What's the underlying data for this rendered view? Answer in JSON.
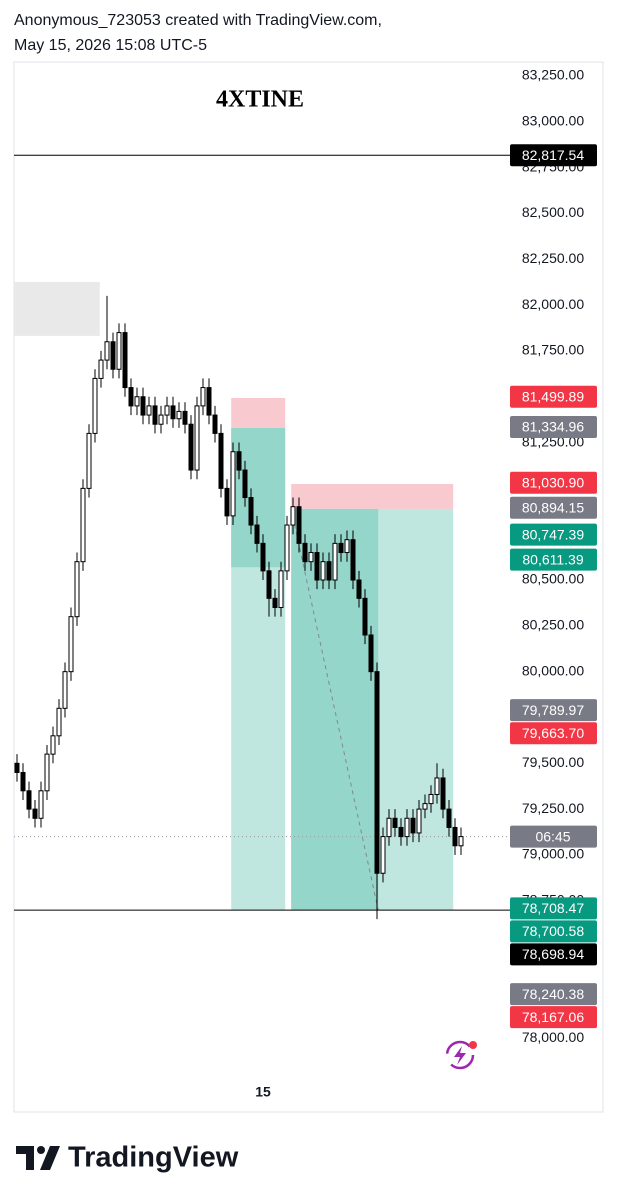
{
  "header": {
    "line1": "Anonymous_723053 created with TradingView.com,",
    "line2": "May 15, 2026 15:08 UTC-5"
  },
  "footer": {
    "brand": "TradingView"
  },
  "chart_data": {
    "type": "candlestick",
    "title": "4XTINE",
    "categories": [
      null,
      null,
      null,
      null,
      null,
      null,
      null,
      null,
      null,
      null,
      null,
      null,
      null,
      null,
      null,
      null,
      null,
      null,
      null,
      null,
      null,
      null,
      null,
      null,
      null,
      null,
      null,
      null,
      null,
      null,
      null,
      null,
      null,
      null,
      null,
      null,
      null,
      null,
      null,
      null,
      null,
      "15",
      null,
      null,
      null,
      null,
      null,
      null,
      null,
      null,
      null,
      null,
      null,
      null,
      null,
      null,
      null,
      null,
      null,
      null,
      null,
      null,
      null,
      null,
      null,
      null,
      null,
      null,
      null,
      null,
      null,
      null,
      null,
      null,
      null
    ],
    "open": [
      79500,
      79450,
      79350,
      79250,
      79200,
      79350,
      79550,
      79650,
      79800,
      80000,
      80300,
      80600,
      81000,
      81300,
      81600,
      81700,
      81800,
      81650,
      81850,
      81550,
      81450,
      81500,
      81400,
      81450,
      81350,
      81400,
      81450,
      81380,
      81420,
      81350,
      81100,
      81450,
      81550,
      81400,
      81300,
      81000,
      80850,
      81200,
      81100,
      80950,
      80800,
      80700,
      80550,
      80400,
      80350,
      80550,
      80800,
      80900,
      80700,
      80600,
      80650,
      80500,
      80600,
      80500,
      80700,
      80650,
      80720,
      80500,
      80400,
      80200,
      80000,
      78900,
      79100,
      79200,
      79150,
      79100,
      79200,
      79120,
      79250,
      79280,
      79330,
      79420,
      79250,
      79150,
      79050
    ],
    "high": [
      79550,
      79500,
      79400,
      79300,
      79400,
      79600,
      79700,
      79850,
      80050,
      80350,
      80650,
      81050,
      81350,
      81650,
      81750,
      82050,
      81850,
      81900,
      81900,
      81600,
      81550,
      81550,
      81500,
      81500,
      81450,
      81500,
      81500,
      81470,
      81470,
      81400,
      81500,
      81600,
      81600,
      81450,
      81350,
      81050,
      81250,
      81250,
      81150,
      81000,
      80850,
      80750,
      80600,
      80450,
      80600,
      80850,
      80950,
      80950,
      80750,
      80700,
      80700,
      80650,
      80650,
      80750,
      80750,
      80770,
      80770,
      80550,
      80450,
      80250,
      80050,
      79150,
      79250,
      79250,
      79200,
      79250,
      79250,
      79300,
      79330,
      79380,
      79500,
      79470,
      79300,
      79200,
      79150
    ],
    "low": [
      79400,
      79300,
      79200,
      79150,
      79150,
      79300,
      79500,
      79600,
      79750,
      79950,
      80250,
      80550,
      80950,
      81250,
      81550,
      81650,
      81600,
      81600,
      81500,
      81400,
      81400,
      81350,
      81350,
      81300,
      81300,
      81350,
      81330,
      81330,
      81300,
      81050,
      81050,
      81400,
      81350,
      81250,
      80950,
      80800,
      80800,
      81050,
      80900,
      80750,
      80650,
      80500,
      80300,
      80300,
      80300,
      80500,
      80750,
      80650,
      80550,
      80550,
      80450,
      80450,
      80450,
      80450,
      80600,
      80600,
      80450,
      80350,
      80150,
      79950,
      78650,
      78850,
      79050,
      79100,
      79050,
      79050,
      79070,
      79070,
      79200,
      79230,
      79280,
      79200,
      79100,
      79000,
      79000
    ],
    "close": [
      79450,
      79350,
      79250,
      79200,
      79350,
      79550,
      79650,
      79800,
      80000,
      80300,
      80600,
      81000,
      81300,
      81600,
      81700,
      81800,
      81650,
      81850,
      81550,
      81450,
      81500,
      81400,
      81450,
      81350,
      81400,
      81450,
      81380,
      81420,
      81350,
      81100,
      81450,
      81550,
      81400,
      81300,
      81000,
      80850,
      81200,
      81100,
      80950,
      80800,
      80700,
      80550,
      80400,
      80350,
      80550,
      80800,
      80900,
      80700,
      80600,
      80650,
      80500,
      80600,
      80500,
      80700,
      80650,
      80720,
      80500,
      80400,
      80200,
      80000,
      78900,
      79100,
      79200,
      79150,
      79100,
      79200,
      79120,
      79250,
      79280,
      79330,
      79420,
      79250,
      79150,
      79050,
      79100
    ],
    "ylim": [
      78000,
      83330
    ],
    "yticks": [
      {
        "value": 83250,
        "label": "83,250.00"
      },
      {
        "value": 83000,
        "label": "83,000.00"
      },
      {
        "value": 82750,
        "label": "82,750.00"
      },
      {
        "value": 82500,
        "label": "82,500.00"
      },
      {
        "value": 82250,
        "label": "82,250.00"
      },
      {
        "value": 82000,
        "label": "82,000.00"
      },
      {
        "value": 81750,
        "label": "81,750.00"
      },
      {
        "value": 81250,
        "label": "81,250.00"
      },
      {
        "value": 80500,
        "label": "80,500.00"
      },
      {
        "value": 80250,
        "label": "80,250.00"
      },
      {
        "value": 80000,
        "label": "80,000.00"
      },
      {
        "value": 79500,
        "label": "79,500.00"
      },
      {
        "value": 79250,
        "label": "79,250.00"
      },
      {
        "value": 79000,
        "label": "79,000.00"
      },
      {
        "value": 78750,
        "label": "78,750.00"
      },
      {
        "value": 78000,
        "label": "78,000.00"
      }
    ],
    "boxes": [
      {
        "color": "#e9e9ea",
        "x": [
          -0.5,
          13.8
        ],
        "y": [
          82126,
          81832
        ]
      },
      {
        "color": "#f8c9cf",
        "x": [
          35.7,
          44.7
        ],
        "y": [
          81493,
          81330
        ]
      },
      {
        "color": "#bfe6df",
        "x": [
          35.7,
          44.7
        ],
        "y": [
          81330,
          78700
        ]
      },
      {
        "color": "#95d6ca",
        "x": [
          35.7,
          44.7
        ],
        "y": [
          81330,
          80570
        ]
      },
      {
        "color": "#f8c9cf",
        "x": [
          45.7,
          72.7
        ],
        "y": [
          81024,
          80888
        ]
      },
      {
        "color": "#bfe6df",
        "x": [
          45.7,
          72.7
        ],
        "y": [
          80888,
          78700
        ]
      },
      {
        "color": "#95d6ca",
        "x": [
          45.7,
          60.2
        ],
        "y": [
          80888,
          78700
        ]
      }
    ],
    "segments": [
      {
        "color": "#7f8a88",
        "x": [
          45.7,
          60.2
        ],
        "y": [
          80888,
          78700
        ]
      }
    ],
    "price_tags": [
      {
        "value": 82817.54,
        "label": "82,817.54",
        "color": "#000000",
        "line": "solid"
      },
      {
        "value": 81499.89,
        "label": "81,499.89",
        "color": "#f23645"
      },
      {
        "value": 81334.96,
        "label": "81,334.96",
        "color": "#787b86"
      },
      {
        "value": 81030.9,
        "label": "81,030.90",
        "color": "#f23645"
      },
      {
        "value": 80894.15,
        "label": "80,894.15",
        "color": "#787b86"
      },
      {
        "value": 80747.39,
        "label": "80,747.39",
        "color": "#089981"
      },
      {
        "value": 80611.39,
        "label": "80,611.39",
        "color": "#089981"
      },
      {
        "value": 79789.97,
        "label": "79,789.97",
        "color": "#787b86"
      },
      {
        "value": 79663.7,
        "label": "79,663.70",
        "color": "#f23645"
      },
      {
        "value": 79100,
        "label": "06:45",
        "color": "#787b86",
        "line": "dotted"
      },
      {
        "value": 78708.47,
        "label": "78,708.47",
        "color": "#089981"
      },
      {
        "value": 78700.58,
        "label": "78,700.58",
        "color": "#089981"
      },
      {
        "value": 78698.94,
        "label": "78,698.94",
        "color": "#000000",
        "line": "solid"
      },
      {
        "value": 78240.38,
        "label": "78,240.38",
        "color": "#787b86"
      },
      {
        "value": 78167.06,
        "label": "78,167.06",
        "color": "#f23645"
      }
    ]
  }
}
